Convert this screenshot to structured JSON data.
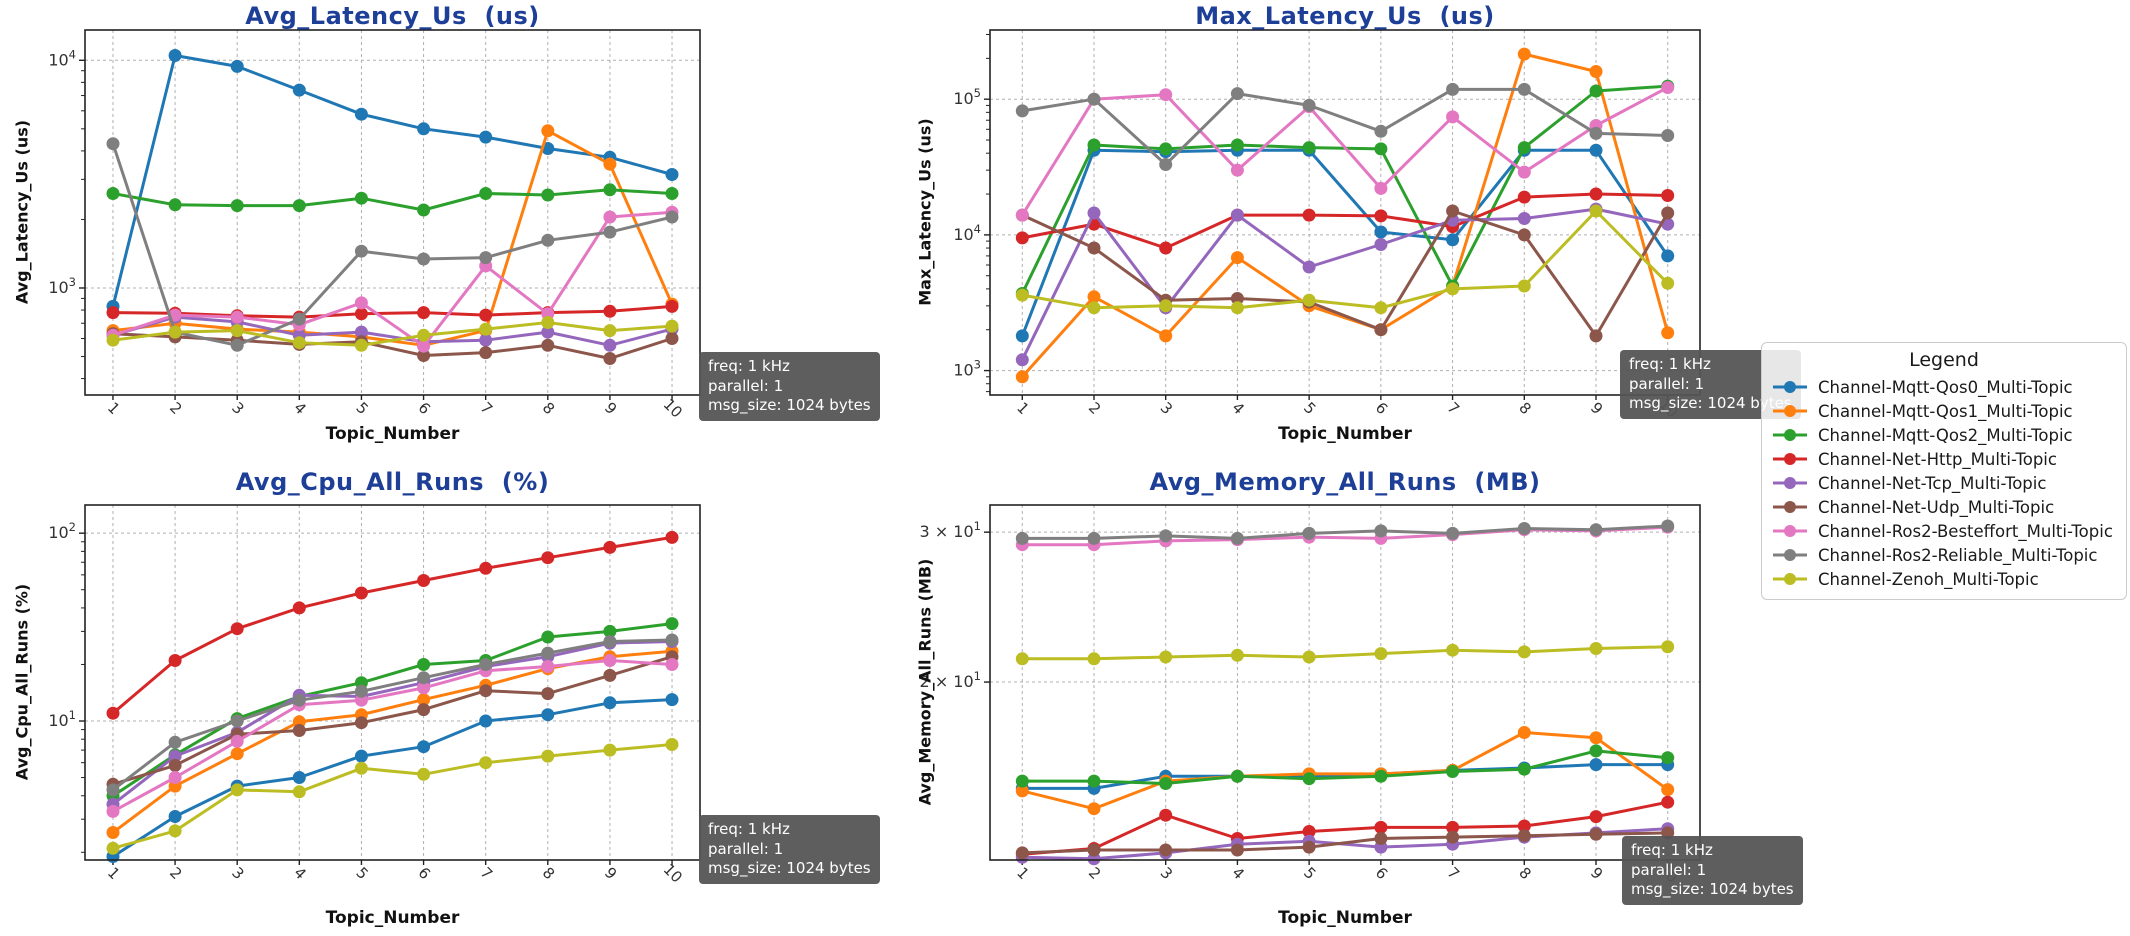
{
  "page": {
    "background": "#ffffff"
  },
  "annotation": {
    "lines": [
      "freq: 1 kHz",
      "parallel: 1",
      "msg_size: 1024 bytes"
    ]
  },
  "x_axis": {
    "label": "Topic_Number",
    "ticks": [
      "1",
      "2",
      "3",
      "4",
      "5",
      "6",
      "7",
      "8",
      "9",
      "10"
    ]
  },
  "legend": {
    "title": "Legend",
    "items": [
      {
        "label": "Channel-Mqtt-Qos0_Multi-Topic",
        "color": "#1f77b4"
      },
      {
        "label": "Channel-Mqtt-Qos1_Multi-Topic",
        "color": "#ff7f0e"
      },
      {
        "label": "Channel-Mqtt-Qos2_Multi-Topic",
        "color": "#2ca02c"
      },
      {
        "label": "Channel-Net-Http_Multi-Topic",
        "color": "#d62728"
      },
      {
        "label": "Channel-Net-Tcp_Multi-Topic",
        "color": "#9467bd"
      },
      {
        "label": "Channel-Net-Udp_Multi-Topic",
        "color": "#8c564b"
      },
      {
        "label": "Channel-Ros2-Besteffort_Multi-Topic",
        "color": "#e377c2"
      },
      {
        "label": "Channel-Ros2-Reliable_Multi-Topic",
        "color": "#7f7f7f"
      },
      {
        "label": "Channel-Zenoh_Multi-Topic",
        "color": "#bcbd22"
      }
    ]
  },
  "chart_data": [
    {
      "id": "avg-latency-us",
      "type": "line",
      "title": "Avg_Latency_Us  (us)",
      "ylabel": "Avg_Latency_Us (us)",
      "xlabel": "Topic_Number",
      "yscale": "log",
      "ylim_log10": [
        2.53,
        4.133
      ],
      "grid": true,
      "yticks": [
        {
          "log10": 3,
          "prefix": "10",
          "exp": "3"
        },
        {
          "log10": 4,
          "prefix": "10",
          "exp": "4"
        }
      ],
      "categories": [
        1,
        2,
        3,
        4,
        5,
        6,
        7,
        8,
        9,
        10
      ],
      "series": [
        {
          "name": "Channel-Mqtt-Qos0_Multi-Topic",
          "values": [
            830,
            10500,
            9400,
            7400,
            5800,
            5000,
            4600,
            4100,
            3750,
            3150
          ]
        },
        {
          "name": "Channel-Mqtt-Qos1_Multi-Topic",
          "values": [
            650,
            700,
            660,
            640,
            610,
            560,
            650,
            4900,
            3500,
            850
          ]
        },
        {
          "name": "Channel-Mqtt-Qos2_Multi-Topic",
          "values": [
            2600,
            2320,
            2300,
            2300,
            2480,
            2200,
            2600,
            2560,
            2700,
            2600
          ]
        },
        {
          "name": "Channel-Net-Http_Multi-Topic",
          "values": [
            780,
            775,
            755,
            745,
            770,
            780,
            760,
            780,
            790,
            830
          ]
        },
        {
          "name": "Channel-Net-Tcp_Multi-Topic",
          "values": [
            620,
            745,
            710,
            620,
            640,
            580,
            590,
            640,
            560,
            660
          ]
        },
        {
          "name": "Channel-Net-Udp_Multi-Topic",
          "values": [
            630,
            610,
            590,
            565,
            580,
            505,
            520,
            560,
            490,
            600
          ]
        },
        {
          "name": "Channel-Ros2-Besteffort_Multi-Topic",
          "values": [
            620,
            760,
            745,
            690,
            860,
            555,
            1250,
            770,
            2050,
            2150
          ]
        },
        {
          "name": "Channel-Ros2-Reliable_Multi-Topic",
          "values": [
            4300,
            640,
            560,
            730,
            1450,
            1340,
            1360,
            1620,
            1760,
            2050
          ]
        },
        {
          "name": "Channel-Zenoh_Multi-Topic",
          "values": [
            590,
            640,
            650,
            575,
            560,
            620,
            660,
            705,
            650,
            680
          ]
        }
      ]
    },
    {
      "id": "max-latency-us",
      "type": "line",
      "title": "Max_Latency_Us  (us)",
      "ylabel": "Max_Latency_Us (us)",
      "xlabel": "Topic_Number",
      "yscale": "log",
      "ylim_log10": [
        2.82,
        5.51
      ],
      "grid": true,
      "yticks": [
        {
          "log10": 3,
          "prefix": "10",
          "exp": "3"
        },
        {
          "log10": 4,
          "prefix": "10",
          "exp": "4"
        },
        {
          "log10": 5,
          "prefix": "10",
          "exp": "5"
        }
      ],
      "categories": [
        1,
        2,
        3,
        4,
        5,
        6,
        7,
        8,
        9,
        10
      ],
      "series": [
        {
          "name": "Channel-Mqtt-Qos0_Multi-Topic",
          "values": [
            1800,
            42000,
            41000,
            42000,
            42000,
            10500,
            9200,
            42000,
            42000,
            7000
          ]
        },
        {
          "name": "Channel-Mqtt-Qos1_Multi-Topic",
          "values": [
            900,
            3500,
            1800,
            6800,
            3000,
            2000,
            4200,
            215000,
            160000,
            1900
          ]
        },
        {
          "name": "Channel-Mqtt-Qos2_Multi-Topic",
          "values": [
            3700,
            46000,
            43000,
            46000,
            44000,
            43000,
            4200,
            44000,
            115000,
            125000
          ]
        },
        {
          "name": "Channel-Net-Http_Multi-Topic",
          "values": [
            9500,
            12000,
            8000,
            14000,
            14000,
            13800,
            11500,
            19000,
            20000,
            19500
          ]
        },
        {
          "name": "Channel-Net-Tcp_Multi-Topic",
          "values": [
            1200,
            14500,
            2900,
            14000,
            5800,
            8500,
            12800,
            13200,
            15500,
            12000
          ]
        },
        {
          "name": "Channel-Net-Udp_Multi-Topic",
          "values": [
            14000,
            8000,
            3300,
            3400,
            3200,
            2000,
            15000,
            10000,
            1800,
            14500
          ]
        },
        {
          "name": "Channel-Ros2-Besteffort_Multi-Topic",
          "values": [
            14000,
            100000,
            108000,
            30000,
            88000,
            22000,
            74000,
            29000,
            64000,
            122000
          ]
        },
        {
          "name": "Channel-Ros2-Reliable_Multi-Topic",
          "values": [
            82000,
            100000,
            33000,
            110000,
            90000,
            58000,
            118000,
            118000,
            56000,
            54000
          ]
        },
        {
          "name": "Channel-Zenoh_Multi-Topic",
          "values": [
            3600,
            2900,
            3000,
            2900,
            3300,
            2900,
            4000,
            4200,
            15000,
            4400
          ]
        }
      ]
    },
    {
      "id": "avg-cpu-all-runs",
      "type": "line",
      "title": "Avg_Cpu_All_Runs  (%)",
      "ylabel": "Avg_Cpu_All_Runs (%)",
      "xlabel": "Topic_Number",
      "yscale": "log",
      "ylim_log10": [
        0.26,
        2.15
      ],
      "grid": true,
      "yticks": [
        {
          "log10": 1,
          "prefix": "10",
          "exp": "1"
        },
        {
          "log10": 2,
          "prefix": "10",
          "exp": "2"
        }
      ],
      "categories": [
        1,
        2,
        3,
        4,
        5,
        6,
        7,
        8,
        9,
        10
      ],
      "series": [
        {
          "name": "Channel-Mqtt-Qos0_Multi-Topic",
          "values": [
            1.9,
            3.1,
            4.5,
            5.0,
            6.5,
            7.3,
            10,
            10.8,
            12.5,
            13
          ]
        },
        {
          "name": "Channel-Mqtt-Qos1_Multi-Topic",
          "values": [
            2.55,
            4.5,
            6.7,
            9.9,
            10.8,
            13,
            15.5,
            19,
            22,
            23.5
          ]
        },
        {
          "name": "Channel-Mqtt-Qos2_Multi-Topic",
          "values": [
            4.0,
            6.6,
            10.3,
            13.5,
            16,
            20,
            21,
            28,
            30,
            33
          ]
        },
        {
          "name": "Channel-Net-Http_Multi-Topic",
          "values": [
            11,
            21,
            31,
            40,
            48,
            56,
            65,
            74,
            84,
            95
          ]
        },
        {
          "name": "Channel-Net-Tcp_Multi-Topic",
          "values": [
            3.6,
            6.5,
            8.7,
            13.7,
            13.5,
            16,
            19.5,
            22,
            26,
            26.5
          ]
        },
        {
          "name": "Channel-Net-Udp_Multi-Topic",
          "values": [
            4.6,
            5.8,
            8.5,
            8.9,
            9.8,
            11.5,
            14.5,
            14,
            17.5,
            22
          ]
        },
        {
          "name": "Channel-Ros2-Besteffort_Multi-Topic",
          "values": [
            3.3,
            5.0,
            7.8,
            12.2,
            12.9,
            15,
            18.5,
            19.5,
            21,
            20
          ]
        },
        {
          "name": "Channel-Ros2-Reliable_Multi-Topic",
          "values": [
            4.3,
            7.7,
            10.0,
            12.9,
            14.4,
            17,
            20,
            23,
            26.5,
            27
          ]
        },
        {
          "name": "Channel-Zenoh_Multi-Topic",
          "values": [
            2.1,
            2.6,
            4.3,
            4.2,
            5.6,
            5.2,
            6.0,
            6.5,
            7.0,
            7.5
          ]
        }
      ]
    },
    {
      "id": "avg-memory-all-runs",
      "type": "line",
      "title": "Avg_Memory_All_Runs  (MB)",
      "ylabel": "Avg_Memory_All_Runs (MB)",
      "xlabel": "Topic_Number",
      "yscale": "log",
      "ylim_log10": [
        1.092,
        1.509
      ],
      "grid": true,
      "yticks": [
        {
          "log10": 1.47712,
          "prefix": "3 × 10",
          "exp": "1"
        },
        {
          "log10": 1.30103,
          "prefix": "2 × 10",
          "exp": "1"
        }
      ],
      "categories": [
        1,
        2,
        3,
        4,
        5,
        6,
        7,
        8,
        9,
        10
      ],
      "series": [
        {
          "name": "Channel-Mqtt-Qos0_Multi-Topic",
          "values": [
            15.0,
            15.0,
            15.5,
            15.5,
            15.5,
            15.6,
            15.75,
            15.85,
            16.0,
            16.0
          ]
        },
        {
          "name": "Channel-Mqtt-Qos1_Multi-Topic",
          "values": [
            14.9,
            14.2,
            15.3,
            15.5,
            15.6,
            15.6,
            15.75,
            17.45,
            17.2,
            14.95
          ]
        },
        {
          "name": "Channel-Mqtt-Qos2_Multi-Topic",
          "values": [
            15.3,
            15.3,
            15.2,
            15.5,
            15.4,
            15.5,
            15.7,
            15.8,
            16.6,
            16.3
          ]
        },
        {
          "name": "Channel-Net-Http_Multi-Topic",
          "values": [
            12.55,
            12.75,
            13.95,
            13.1,
            13.35,
            13.5,
            13.5,
            13.55,
            13.9,
            14.45
          ]
        },
        {
          "name": "Channel-Net-Tcp_Multi-Topic",
          "values": [
            12.45,
            12.4,
            12.6,
            12.9,
            13.0,
            12.8,
            12.9,
            13.15,
            13.3,
            13.45
          ]
        },
        {
          "name": "Channel-Net-Udp_Multi-Topic",
          "values": [
            12.6,
            12.7,
            12.7,
            12.7,
            12.8,
            13.1,
            13.15,
            13.2,
            13.25,
            13.3
          ]
        },
        {
          "name": "Channel-Ros2-Besteffort_Multi-Topic",
          "values": [
            29.0,
            29.0,
            29.3,
            29.4,
            29.6,
            29.5,
            29.8,
            30.2,
            30.1,
            30.4
          ]
        },
        {
          "name": "Channel-Ros2-Reliable_Multi-Topic",
          "values": [
            29.5,
            29.5,
            29.7,
            29.5,
            29.9,
            30.1,
            29.9,
            30.3,
            30.2,
            30.5
          ]
        },
        {
          "name": "Channel-Zenoh_Multi-Topic",
          "values": [
            21.3,
            21.3,
            21.4,
            21.5,
            21.4,
            21.6,
            21.8,
            21.7,
            21.9,
            22.0
          ]
        }
      ]
    }
  ]
}
